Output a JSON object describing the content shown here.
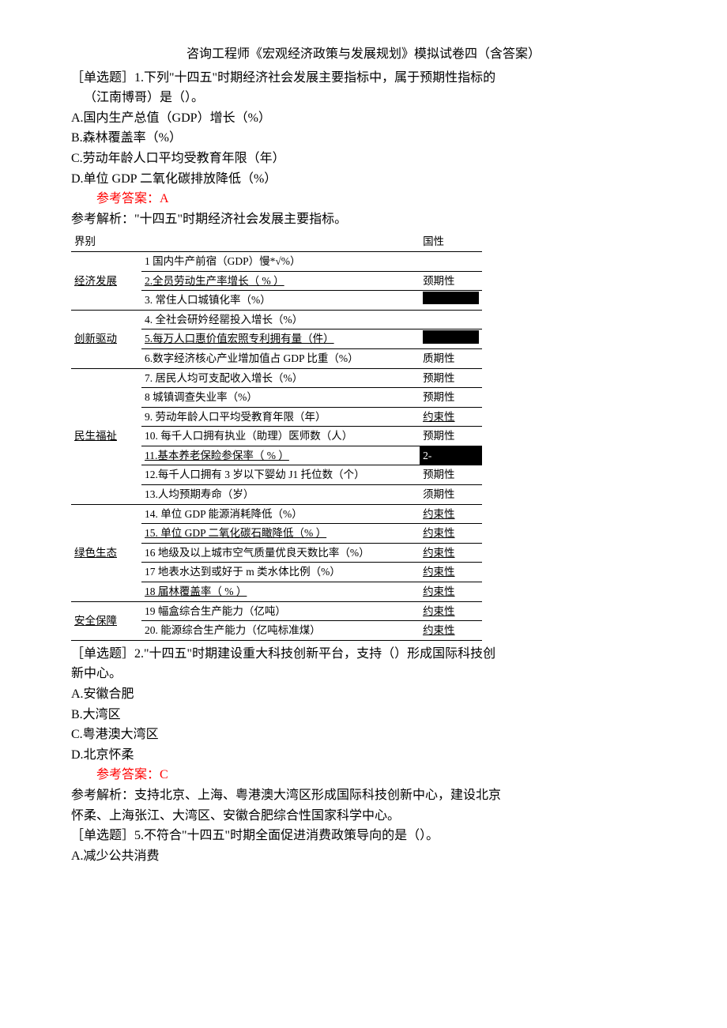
{
  "title": "咨询工程师《宏观经济政策与发展规划》模拟试卷四（含答案）",
  "q1": {
    "stem_l1": "［单选题］1.下列\"十四五\"时期经济社会发展主要指标中，属于预期性指标的",
    "stem_l2": "（江南博哥）是（）。",
    "A": "A.国内生产总值（GDP）增长（%）",
    "B": "B.森林覆盖率（%）",
    "C": "C.劳动年龄人口平均受教育年限（年）",
    "D": "D.单位 GDP 二氧化碳排放降低（%）",
    "answer": "参考答案：A",
    "analysis": "参考解析：\"十四五\"时期经济社会发展主要指标。"
  },
  "table": {
    "header": {
      "cat": "界别",
      "indicator": "",
      "attr": "国性"
    },
    "rows": [
      {
        "cat": "经济发展",
        "cat_underline": true,
        "items": [
          {
            "text": "1 国内牛产前宿（GDP）慢*√%）",
            "attr": "",
            "black": false
          },
          {
            "text": "2.全员劳动生产率增长（ % ）",
            "attr": "颈期性",
            "underline": true
          },
          {
            "text": "3. 常住人口城镇化率（%）",
            "attr": "",
            "black": true
          }
        ]
      },
      {
        "cat": "创新驱动",
        "cat_underline": true,
        "items": [
          {
            "text": "4. 全社会研妗经罂投入增长（%）",
            "attr": "",
            "black": false
          },
          {
            "text": "5.每万人口惠价值宏照专利拥有量（件）",
            "attr": "",
            "black": true,
            "underline": true
          },
          {
            "text": "6.数字经济核心产业增加值占 GDP 比重（%）",
            "attr": "质期性"
          }
        ]
      },
      {
        "cat": "民生福祉",
        "cat_underline": true,
        "items": [
          {
            "text": "7. 居民人均可支配收入增长（%）",
            "attr": "预期性"
          },
          {
            "text": "8 城镇调查失业率（%）",
            "attr": "预期性"
          },
          {
            "text": "9. 劳动年龄人口平均受教育年限（年）",
            "attr": "约束性",
            "attr_underline": true
          },
          {
            "text": "10. 每千人口拥有执业（助理）医师数（人）",
            "attr": "预期性"
          },
          {
            "text": "11.基本养老保睑参保率（ % ）",
            "attr": "2-",
            "underline": true,
            "attr_black": true
          },
          {
            "text": "12.每千人口拥有 3 岁以下婴幼 J1 托位数（个）",
            "attr": "预期性"
          },
          {
            "text": "13.人均预期寿命（岁）",
            "attr": "须期性"
          }
        ]
      },
      {
        "cat": "绿色生态",
        "cat_underline": true,
        "items": [
          {
            "text": "14. 单位 GDP 能源消耗降低（%）",
            "attr": "约束性",
            "attr_underline": true
          },
          {
            "text": "15. 单位 GDP 二氧化碳石瞰降低（% ）",
            "attr": "约束性",
            "underline": true,
            "attr_underline": true
          },
          {
            "text": "16 地级及以上城市空气质量优良天数比率（%）",
            "attr": "约束性",
            "attr_underline": true
          },
          {
            "text": "17 地表水达到或好于 m 类水体比例（%）",
            "attr": "约束性",
            "attr_underline": true
          },
          {
            "text": "18 届林覆盖率（ % ）",
            "attr": "约束性",
            "underline": true,
            "attr_underline": true
          }
        ]
      },
      {
        "cat": "安全保障",
        "cat_underline": true,
        "items": [
          {
            "text": "19 幅盒综合生产能力（亿吨）",
            "attr": "约束性",
            "attr_underline": true
          },
          {
            "text": "20. 能源综合生产能力（亿吨标准煤）",
            "attr": "约束性",
            "attr_underline": true
          }
        ]
      }
    ]
  },
  "q2": {
    "stem_l1": "［单选题］2.\"十四五\"时期建设重大科技创新平台，支持（）形成国际科技创",
    "stem_l2": "新中心。",
    "A": "A.安徽合肥",
    "B": "B.大湾区",
    "C": "C.粤港澳大湾区",
    "D": "D.北京怀柔",
    "answer": "参考答案：C",
    "analysis_l1": "参考解析：支持北京、上海、粤港澳大湾区形成国际科技创新中心，建设北京",
    "analysis_l2": "怀柔、上海张江、大湾区、安徽合肥综合性国家科学中心。"
  },
  "q5": {
    "stem": "［单选题］5.不符合\"十四五\"时期全面促进消费政策导向的是（）。",
    "A": "A.减少公共消费"
  }
}
